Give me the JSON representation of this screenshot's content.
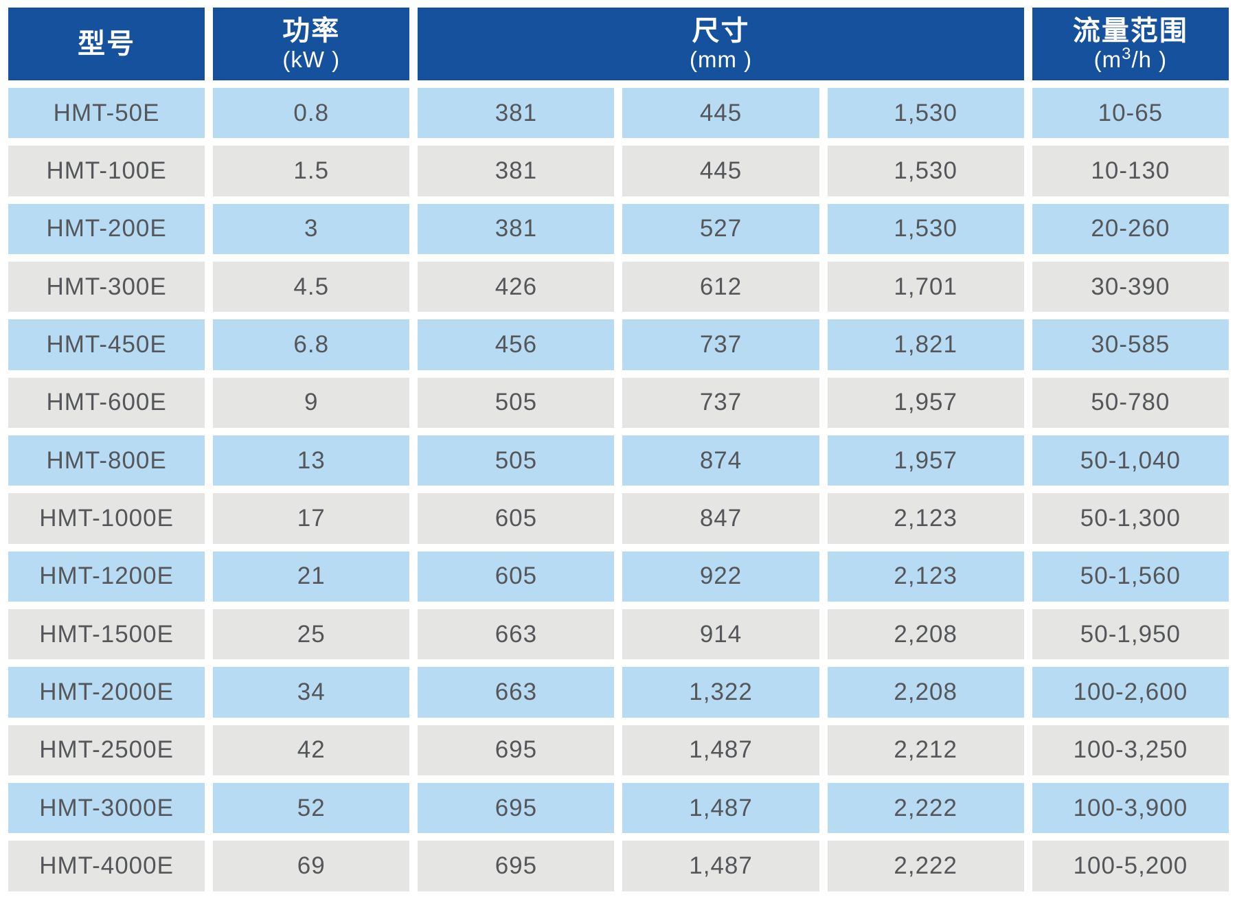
{
  "table": {
    "columns_count": 6,
    "header": {
      "model_title": "型号",
      "power_title": "功率",
      "power_unit": "(kW )",
      "dimensions_title": "尺寸",
      "dimensions_unit": "(mm )",
      "flow_title": "流量范围",
      "flow_unit_prefix": "(m",
      "flow_unit_sup": "3",
      "flow_unit_suffix": "/h )"
    },
    "rows": [
      {
        "model": "HMT-50E",
        "power": "0.8",
        "dim1": "381",
        "dim2": "445",
        "dim3": "1,530",
        "flow": "10-65"
      },
      {
        "model": "HMT-100E",
        "power": "1.5",
        "dim1": "381",
        "dim2": "445",
        "dim3": "1,530",
        "flow": "10-130"
      },
      {
        "model": "HMT-200E",
        "power": "3",
        "dim1": "381",
        "dim2": "527",
        "dim3": "1,530",
        "flow": "20-260"
      },
      {
        "model": "HMT-300E",
        "power": "4.5",
        "dim1": "426",
        "dim2": "612",
        "dim3": "1,701",
        "flow": "30-390"
      },
      {
        "model": "HMT-450E",
        "power": "6.8",
        "dim1": "456",
        "dim2": "737",
        "dim3": "1,821",
        "flow": "30-585"
      },
      {
        "model": "HMT-600E",
        "power": "9",
        "dim1": "505",
        "dim2": "737",
        "dim3": "1,957",
        "flow": "50-780"
      },
      {
        "model": "HMT-800E",
        "power": "13",
        "dim1": "505",
        "dim2": "874",
        "dim3": "1,957",
        "flow": "50-1,040"
      },
      {
        "model": "HMT-1000E",
        "power": "17",
        "dim1": "605",
        "dim2": "847",
        "dim3": "2,123",
        "flow": "50-1,300"
      },
      {
        "model": "HMT-1200E",
        "power": "21",
        "dim1": "605",
        "dim2": "922",
        "dim3": "2,123",
        "flow": "50-1,560"
      },
      {
        "model": "HMT-1500E",
        "power": "25",
        "dim1": "663",
        "dim2": "914",
        "dim3": "2,208",
        "flow": "50-1,950"
      },
      {
        "model": "HMT-2000E",
        "power": "34",
        "dim1": "663",
        "dim2": "1,322",
        "dim3": "2,208",
        "flow": "100-2,600"
      },
      {
        "model": "HMT-2500E",
        "power": "42",
        "dim1": "695",
        "dim2": "1,487",
        "dim3": "2,212",
        "flow": "100-3,250"
      },
      {
        "model": "HMT-3000E",
        "power": "52",
        "dim1": "695",
        "dim2": "1,487",
        "dim3": "2,222",
        "flow": "100-3,900"
      },
      {
        "model": "HMT-4000E",
        "power": "69",
        "dim1": "695",
        "dim2": "1,487",
        "dim3": "2,222",
        "flow": "100-5,200"
      }
    ]
  },
  "colors": {
    "header_bg": "#15519d",
    "header_text": "#ffffff",
    "row_blue_bg": "#b6dbf2",
    "row_gray_bg": "#e5e5e4",
    "cell_text": "#54565a",
    "gap": "#ffffff"
  }
}
